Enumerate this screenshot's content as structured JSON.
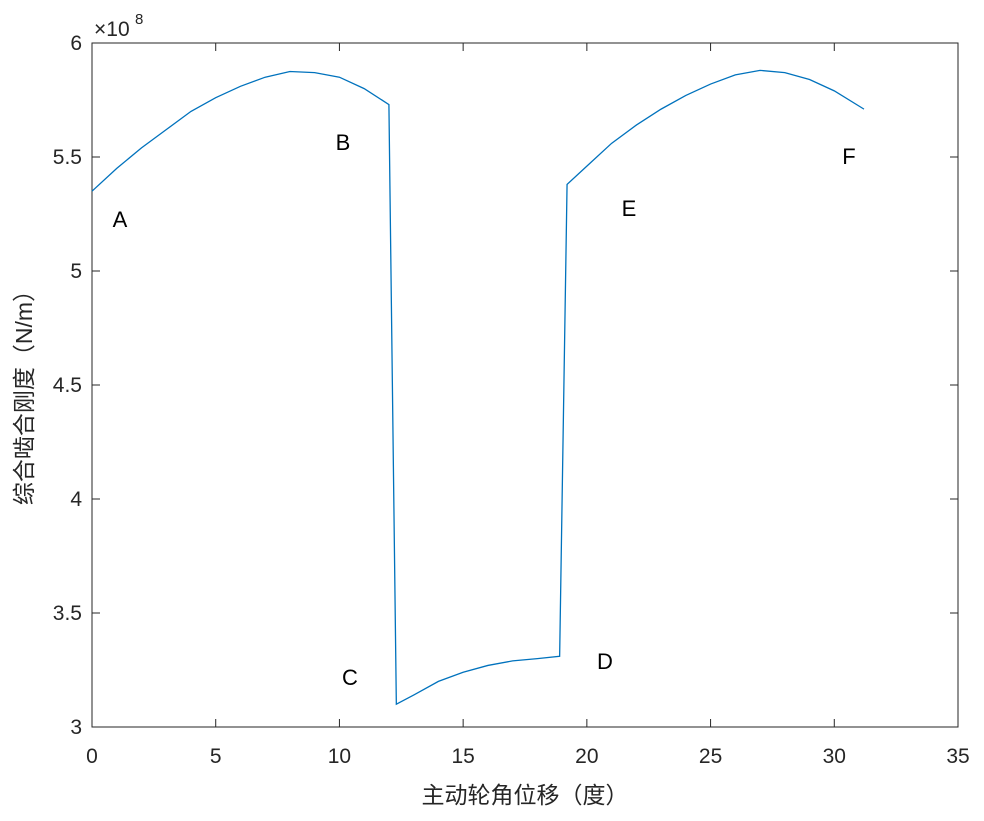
{
  "chart_data": {
    "type": "line",
    "xlabel": "主动轮角位移（度）",
    "ylabel": "综合啮合刚度（N/m）",
    "y_multiplier": "×10",
    "y_multiplier_exponent": "8",
    "x": [
      0,
      1,
      2,
      3,
      4,
      5,
      6,
      7,
      8,
      9,
      10,
      11,
      12,
      12.3,
      13,
      14,
      15,
      16,
      17,
      18,
      18.9,
      19.2,
      20,
      21,
      22,
      23,
      24,
      25,
      26,
      27,
      28,
      29,
      30,
      31.2
    ],
    "series": [
      {
        "color": "#0072bd",
        "values": [
          5.35,
          5.45,
          5.54,
          5.62,
          5.7,
          5.76,
          5.81,
          5.85,
          5.875,
          5.87,
          5.85,
          5.8,
          5.73,
          3.1,
          3.14,
          3.2,
          3.24,
          3.27,
          3.29,
          3.3,
          3.31,
          5.38,
          5.46,
          5.56,
          5.64,
          5.71,
          5.77,
          5.82,
          5.86,
          5.88,
          5.87,
          5.84,
          5.79,
          5.71
        ]
      }
    ],
    "annotations": [
      "A",
      "B",
      "C",
      "D",
      "E",
      "F"
    ],
    "xlim": [
      0,
      35
    ],
    "xticks": [
      0,
      5,
      10,
      15,
      20,
      25,
      30,
      35
    ],
    "ylim": [
      3,
      6
    ],
    "yticks": [
      3,
      3.5,
      4,
      4.5,
      5,
      5.5,
      6
    ],
    "grid": false
  }
}
